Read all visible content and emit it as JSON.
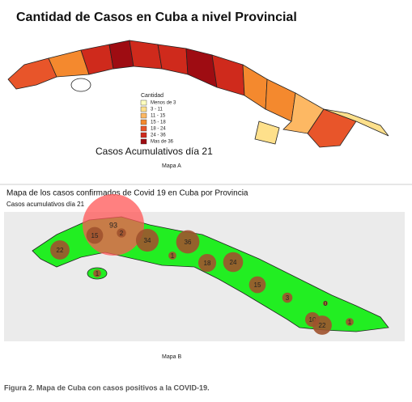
{
  "map_a": {
    "title": "Cantidad de Casos en Cuba a nivel Provincial",
    "legend": {
      "title": "Cantidad",
      "entries": [
        {
          "label": "Menos de 3",
          "color": "#ffffbf"
        },
        {
          "label": "3 - 11",
          "color": "#fee08b"
        },
        {
          "label": "11 - 15",
          "color": "#fdb863"
        },
        {
          "label": "15 - 18",
          "color": "#f4892e"
        },
        {
          "label": "18 - 24",
          "color": "#e8552a"
        },
        {
          "label": "24 - 36",
          "color": "#cf2a1c"
        },
        {
          "label": "Mas de 36",
          "color": "#9e0c12"
        }
      ]
    },
    "annotation": "Casos Acumulativos  día  21",
    "label": "Mapa A"
  },
  "map_b": {
    "title": "Mapa de los casos confirmados de Covid 19 en Cuba por Provincia",
    "subtitle": "Casos acumulativos   día  21",
    "land_color": "#22ee22",
    "bubble_color": "#a0522d",
    "highlight_color": "#ff5555",
    "bubbles": [
      93,
      2,
      15,
      22,
      1,
      34,
      36,
      1,
      18,
      24,
      15,
      3,
      10,
      22,
      1,
      0
    ],
    "label": "Mapa B"
  },
  "caption": "Figura 2. Mapa de Cuba con casos positivos a la COVID-19."
}
